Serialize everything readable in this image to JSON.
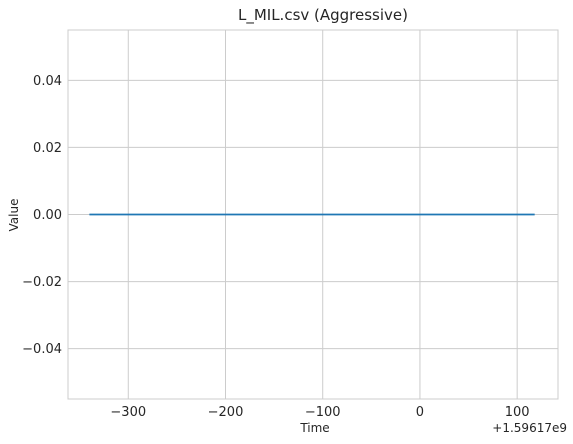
{
  "chart_data": {
    "type": "line",
    "title": "L_MIL.csv (Aggressive)",
    "xlabel": "Time",
    "ylabel": "Value",
    "x_offset_label": "+1.59617e9",
    "xlim": [
      -362,
      142
    ],
    "ylim": [
      -0.055,
      0.055
    ],
    "x_ticks": [
      -300,
      -200,
      -100,
      0,
      100
    ],
    "x_tick_labels": [
      "−300",
      "−200",
      "−100",
      "0",
      "100"
    ],
    "y_ticks": [
      -0.04,
      -0.02,
      0.0,
      0.02,
      0.04
    ],
    "y_tick_labels": [
      "−0.04",
      "−0.02",
      "0.00",
      "0.02",
      "0.04"
    ],
    "grid": true,
    "series": [
      {
        "color": "#1f77b4",
        "x": [
          -340,
          118
        ],
        "y": [
          0.0,
          0.0
        ]
      }
    ]
  }
}
